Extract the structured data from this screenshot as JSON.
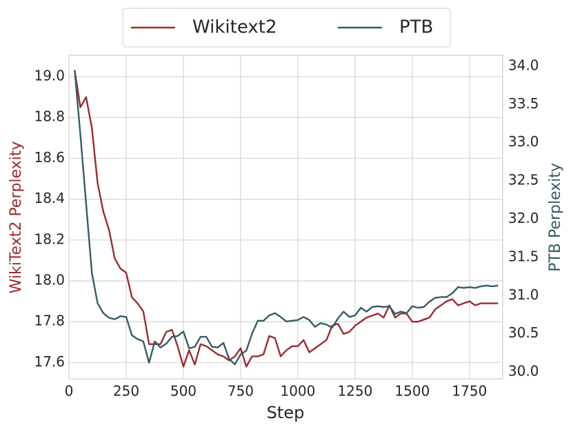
{
  "chart_data": {
    "type": "line",
    "x_label": "Step",
    "y_label": "WikiText2 Perplexity",
    "y2_label": "PTB Perplexity",
    "x": [
      25,
      50,
      75,
      100,
      125,
      150,
      175,
      200,
      225,
      250,
      275,
      300,
      325,
      350,
      375,
      400,
      425,
      450,
      475,
      500,
      525,
      550,
      575,
      600,
      625,
      650,
      675,
      700,
      725,
      750,
      775,
      800,
      825,
      850,
      875,
      900,
      925,
      950,
      975,
      1000,
      1025,
      1050,
      1075,
      1100,
      1125,
      1150,
      1175,
      1200,
      1225,
      1250,
      1275,
      1300,
      1325,
      1350,
      1375,
      1400,
      1425,
      1450,
      1475,
      1500,
      1525,
      1550,
      1575,
      1600,
      1625,
      1650,
      1675,
      1700,
      1725,
      1750,
      1775,
      1800,
      1825,
      1850,
      1875
    ],
    "series": [
      {
        "name": "Wikitext2",
        "color": "#9b2b2e",
        "axis": "y",
        "values": [
          19.03,
          18.85,
          18.9,
          18.75,
          18.48,
          18.34,
          18.25,
          18.11,
          18.06,
          18.04,
          17.92,
          17.89,
          17.85,
          17.69,
          17.69,
          17.69,
          17.75,
          17.76,
          17.68,
          17.58,
          17.66,
          17.59,
          17.69,
          17.68,
          17.66,
          17.64,
          17.63,
          17.61,
          17.63,
          17.67,
          17.58,
          17.63,
          17.63,
          17.64,
          17.73,
          17.72,
          17.63,
          17.66,
          17.68,
          17.68,
          17.71,
          17.65,
          17.67,
          17.69,
          17.71,
          17.78,
          17.79,
          17.74,
          17.75,
          17.78,
          17.8,
          17.82,
          17.83,
          17.84,
          17.82,
          17.88,
          17.82,
          17.84,
          17.84,
          17.8,
          17.8,
          17.81,
          17.82,
          17.86,
          17.88,
          17.9,
          17.91,
          17.88,
          17.89,
          17.9,
          17.88,
          17.89,
          17.89,
          17.89,
          17.89
        ]
      },
      {
        "name": "PTB",
        "color": "#345c66",
        "axis": "y2",
        "values": [
          33.95,
          33.1,
          32.2,
          31.3,
          30.9,
          30.77,
          30.71,
          30.69,
          30.73,
          30.72,
          30.48,
          30.43,
          30.4,
          30.12,
          30.4,
          30.32,
          30.37,
          30.46,
          30.47,
          30.53,
          30.31,
          30.33,
          30.46,
          30.46,
          30.33,
          30.32,
          30.38,
          30.17,
          30.1,
          30.23,
          30.28,
          30.5,
          30.67,
          30.67,
          30.74,
          30.77,
          30.72,
          30.66,
          30.67,
          30.68,
          30.72,
          30.68,
          30.59,
          30.64,
          30.62,
          30.58,
          30.7,
          30.79,
          30.72,
          30.74,
          30.84,
          30.79,
          30.85,
          30.86,
          30.85,
          30.86,
          30.76,
          30.79,
          30.77,
          30.86,
          30.84,
          30.85,
          30.92,
          30.97,
          30.98,
          30.98,
          31.03,
          31.11,
          31.1,
          31.11,
          31.1,
          31.12,
          31.13,
          31.12,
          31.13
        ]
      }
    ],
    "xlim": [
      0,
      1895
    ],
    "xticks": [
      0,
      250,
      500,
      750,
      1000,
      1250,
      1500,
      1750
    ],
    "ylim": [
      17.52,
      19.105
    ],
    "yticks": [
      17.6,
      17.8,
      {
        "value": 18,
        "label": "18.0"
      },
      18.2,
      18.4,
      18.6,
      18.8,
      {
        "value": 19,
        "label": "19.0"
      }
    ],
    "y2lim": [
      29.91,
      34.144
    ],
    "y2ticks": [
      {
        "value": 30,
        "label": "30.0"
      },
      30.5,
      {
        "value": 31,
        "label": "31.0"
      },
      31.5,
      {
        "value": 32,
        "label": "32.0"
      },
      32.5,
      {
        "value": 33,
        "label": "33.0"
      },
      33.5,
      {
        "value": 34,
        "label": "34.0"
      }
    ],
    "grid": true,
    "legend": "top"
  }
}
